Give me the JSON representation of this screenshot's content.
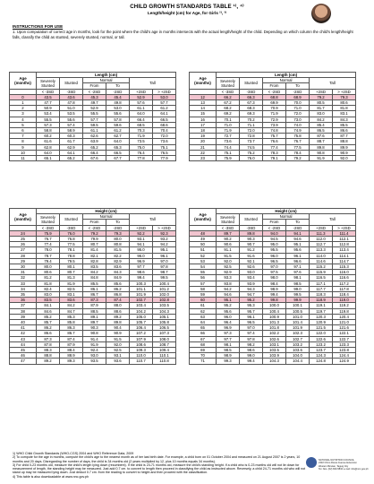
{
  "title": "CHILD GROWTH STANDARDS TABLE ¹⁾, ⁴⁾",
  "subtitle": "Length/height (cm) for Age, for Girls ²⁾, ³⁾",
  "instructions_heading": "INSTRUCTIONS FOR USE",
  "instructions": "1. Upon computation of correct age in months, look for the point where the child's age in months intersects with the actual length/height of the child. Depending on which column the child's length/height falls, classify the child as stunted, severely stunted, normal, or tall.",
  "headers": {
    "length": "Length (cm)",
    "height": "Height (cm)",
    "age": "Age",
    "months": "(months)",
    "severely": "Severely",
    "stunted": "Stunted",
    "normal": "Normal",
    "tall": "Tall",
    "from": "From",
    "to": "To",
    "c1": "< -3SD",
    "c2": "-3SD",
    "c3": "< -2SD",
    "c4": "-2SD",
    "c5": "+2SD",
    "c6": "> +2SD"
  },
  "tables": {
    "t1": [
      [
        "0",
        "43.5",
        "43.6",
        "45.3",
        "45.4",
        "52.9",
        "53.0"
      ],
      [
        "1",
        "47.7",
        "47.8",
        "49.7",
        "49.8",
        "57.6",
        "57.7"
      ],
      [
        "2",
        "50.9",
        "51.0",
        "52.9",
        "53.0",
        "61.1",
        "61.2"
      ],
      [
        "3",
        "53.4",
        "53.5",
        "55.5",
        "55.6",
        "64.0",
        "64.1"
      ],
      [
        "4",
        "55.5",
        "55.6",
        "57.7",
        "57.8",
        "66.4",
        "66.5"
      ],
      [
        "5",
        "57.3",
        "57.4",
        "59.5",
        "59.6",
        "68.5",
        "68.6"
      ],
      [
        "6",
        "58.8",
        "58.9",
        "61.1",
        "61.2",
        "70.3",
        "70.4"
      ],
      [
        "7",
        "60.2",
        "60.3",
        "62.6",
        "62.7",
        "71.9",
        "72.0"
      ],
      [
        "8",
        "61.6",
        "61.7",
        "63.9",
        "64.0",
        "73.5",
        "73.6"
      ],
      [
        "9",
        "62.8",
        "62.9",
        "65.2",
        "65.3",
        "75.0",
        "75.1"
      ],
      [
        "10",
        "64.0",
        "64.1",
        "66.4",
        "66.5",
        "76.4",
        "76.5"
      ],
      [
        "11",
        "65.1",
        "65.2",
        "67.6",
        "67.7",
        "77.8",
        "77.9"
      ]
    ],
    "t2": [
      [
        "12",
        "66.2",
        "66.3",
        "68.8",
        "68.9",
        "79.2",
        "79.3"
      ],
      [
        "13",
        "67.2",
        "67.3",
        "69.9",
        "70.0",
        "80.5",
        "80.6"
      ],
      [
        "14",
        "68.2",
        "68.3",
        "70.9",
        "71.0",
        "81.7",
        "81.8"
      ],
      [
        "15",
        "69.2",
        "69.3",
        "71.9",
        "72.0",
        "83.0",
        "83.1"
      ],
      [
        "16",
        "70.1",
        "70.2",
        "72.9",
        "73.0",
        "84.2",
        "84.3"
      ],
      [
        "17",
        "71.0",
        "71.1",
        "73.9",
        "74.0",
        "85.4",
        "85.5"
      ],
      [
        "18",
        "71.9",
        "72.0",
        "74.8",
        "74.9",
        "86.5",
        "86.6"
      ],
      [
        "19",
        "72.7",
        "72.8",
        "75.7",
        "75.8",
        "87.6",
        "87.7"
      ],
      [
        "20",
        "73.6",
        "73.7",
        "76.6",
        "76.7",
        "88.7",
        "88.8"
      ],
      [
        "21",
        "74.4",
        "74.5",
        "77.4",
        "77.5",
        "89.8",
        "89.9"
      ],
      [
        "22",
        "75.1",
        "75.2",
        "78.3",
        "78.4",
        "90.8",
        "90.9"
      ],
      [
        "23",
        "75.9",
        "76.0",
        "79.1",
        "79.2",
        "91.9",
        "92.0"
      ]
    ],
    "t3": [
      [
        "24",
        "75.9",
        "76.0",
        "79.2",
        "79.3",
        "92.2",
        "92.3"
      ],
      [
        "25",
        "76.7",
        "76.8",
        "79.9",
        "80.0",
        "93.1",
        "93.2"
      ],
      [
        "26",
        "77.4",
        "77.5",
        "80.7",
        "80.8",
        "94.1",
        "94.2"
      ],
      [
        "27",
        "78.0",
        "78.1",
        "81.4",
        "81.5",
        "95.0",
        "95.1"
      ],
      [
        "28",
        "78.7",
        "78.8",
        "82.1",
        "82.2",
        "96.0",
        "96.1"
      ],
      [
        "29",
        "79.4",
        "79.5",
        "82.8",
        "82.9",
        "96.9",
        "97.0"
      ],
      [
        "30",
        "80.0",
        "80.1",
        "83.5",
        "83.6",
        "97.7",
        "97.8"
      ],
      [
        "31",
        "80.6",
        "80.7",
        "84.2",
        "84.3",
        "98.6",
        "98.7"
      ],
      [
        "32",
        "81.2",
        "81.3",
        "84.8",
        "84.9",
        "99.4",
        "99.5"
      ],
      [
        "33",
        "81.8",
        "81.9",
        "85.5",
        "85.6",
        "100.3",
        "100.4"
      ],
      [
        "34",
        "82.4",
        "82.5",
        "86.1",
        "86.2",
        "101.1",
        "101.2"
      ],
      [
        "35",
        "83.0",
        "83.1",
        "86.7",
        "86.8",
        "101.9",
        "102.0"
      ],
      [
        "36",
        "83.5",
        "83.6",
        "87.3",
        "87.4",
        "102.7",
        "102.8"
      ],
      [
        "37",
        "84.1",
        "84.2",
        "87.9",
        "88.0",
        "103.4",
        "103.5"
      ],
      [
        "38",
        "84.6",
        "84.7",
        "88.5",
        "88.6",
        "104.2",
        "104.3"
      ],
      [
        "39",
        "85.2",
        "85.3",
        "89.1",
        "89.2",
        "105.0",
        "105.1"
      ],
      [
        "40",
        "85.7",
        "85.8",
        "89.7",
        "89.8",
        "105.7",
        "105.8"
      ],
      [
        "41",
        "86.2",
        "86.3",
        "90.3",
        "90.4",
        "106.4",
        "106.5"
      ],
      [
        "42",
        "86.6",
        "86.7",
        "90.8",
        "90.9",
        "107.2",
        "107.3"
      ],
      [
        "43",
        "87.3",
        "87.4",
        "91.4",
        "91.5",
        "107.9",
        "108.0"
      ],
      [
        "44",
        "87.8",
        "87.9",
        "91.9",
        "92.0",
        "108.6",
        "108.7"
      ],
      [
        "45",
        "88.3",
        "88.4",
        "92.4",
        "92.5",
        "109.3",
        "109.4"
      ],
      [
        "46",
        "88.8",
        "88.9",
        "93.0",
        "93.1",
        "110.0",
        "110.1"
      ],
      [
        "47",
        "89.2",
        "89.3",
        "93.5",
        "93.6",
        "110.7",
        "110.8"
      ]
    ],
    "t4": [
      [
        "48",
        "89.7",
        "89.8",
        "94.0",
        "94.1",
        "111.3",
        "111.4"
      ],
      [
        "49",
        "90.2",
        "90.3",
        "94.5",
        "94.6",
        "112.0",
        "112.1"
      ],
      [
        "50",
        "90.6",
        "90.7",
        "95.0",
        "95.1",
        "112.7",
        "112.8"
      ],
      [
        "51",
        "91.1",
        "91.2",
        "95.5",
        "95.6",
        "113.3",
        "113.4"
      ],
      [
        "52",
        "91.5",
        "91.6",
        "96.0",
        "96.1",
        "114.0",
        "114.1"
      ],
      [
        "53",
        "92.0",
        "92.1",
        "96.5",
        "96.6",
        "114.6",
        "114.7"
      ],
      [
        "54",
        "92.5",
        "92.6",
        "97.0",
        "97.1",
        "115.2",
        "115.3"
      ],
      [
        "55",
        "92.9",
        "93.0",
        "97.5",
        "97.6",
        "115.9",
        "116.0"
      ],
      [
        "56",
        "93.3",
        "93.4",
        "98.0",
        "98.1",
        "116.5",
        "116.6"
      ],
      [
        "57",
        "93.8",
        "93.9",
        "98.4",
        "98.5",
        "117.1",
        "117.2"
      ],
      [
        "58",
        "94.2",
        "94.3",
        "98.9",
        "99.0",
        "117.7",
        "117.8"
      ],
      [
        "59",
        "94.6",
        "94.7",
        "99.4",
        "99.5",
        "118.3",
        "118.4"
      ],
      [
        "60",
        "95.1",
        "95.2",
        "99.8",
        "99.9",
        "118.9",
        "119.0"
      ],
      [
        "61",
        "95.2",
        "95.3",
        "100.0",
        "100.1",
        "119.1",
        "119.2"
      ],
      [
        "62",
        "95.6",
        "95.7",
        "100.4",
        "100.5",
        "119.7",
        "119.8"
      ],
      [
        "63",
        "96.0",
        "96.1",
        "100.9",
        "101.0",
        "120.3",
        "120.4"
      ],
      [
        "64",
        "96.4",
        "96.5",
        "101.3",
        "101.4",
        "120.9",
        "121.0"
      ],
      [
        "65",
        "96.9",
        "97.0",
        "101.8",
        "101.9",
        "121.5",
        "121.6"
      ],
      [
        "66",
        "97.3",
        "97.4",
        "102.2",
        "102.3",
        "122.0",
        "122.1"
      ],
      [
        "67",
        "97.7",
        "97.8",
        "102.6",
        "102.7",
        "122.6",
        "122.7"
      ],
      [
        "68",
        "98.1",
        "98.2",
        "103.1",
        "103.2",
        "123.2",
        "123.3"
      ],
      [
        "69",
        "98.5",
        "98.6",
        "103.5",
        "103.6",
        "123.7",
        "123.8"
      ],
      [
        "70",
        "98.9",
        "99.0",
        "103.9",
        "104.0",
        "124.3",
        "124.4"
      ],
      [
        "71",
        "99.3",
        "99.4",
        "104.3",
        "104.4",
        "124.8",
        "124.9"
      ]
    ]
  },
  "notes": [
    "1) WHO Child Growth Standards (WHO-CGS) 2004 and WHO Reference Data, 2009",
    "2) To compute for the age in months, compute the child's age to the nearest month as of her last birth date. For example, a child born on 01 October 2004 and measured on 21 August 2007 is 2 years, 10 months and 20 days. Disregarding the number of days, the child is 34 months old (2 years multiplied by 12, plus 10 months equals 34 months).",
    "3) For child 0-23 months old, measure the child's length lying down (recumbent). If the child is 24-71 months old, measure the child's standing height. If a child who is 0-23 months old will not lie down for measurement of length, the standing height may be measured. Just add 0.7 cm. to convert to length then proceed in classifying the child as instructed above. Reversely, a child 24-71 months old who will not stand up may be measured lying down. Just deduct 0.7 cm. from the reading to convert to height and then proceed with the classification.",
    "4) This table is also downloadable at www.nnc.gov.ph"
  ],
  "footer": [
    "NATIONAL NUTRITION COUNCIL",
    "2332 Chino Roces Avenue Extension",
    "Western Bicutan, Taguig City",
    "Tel. Nos. (02) 843-5832 e-mail: info@nnc.gov.ph"
  ],
  "highlight_rows": [
    "0",
    "12",
    "24",
    "36",
    "48",
    "60"
  ],
  "colors": {
    "highlight": "#f2c4cf",
    "grid": "#555555"
  }
}
